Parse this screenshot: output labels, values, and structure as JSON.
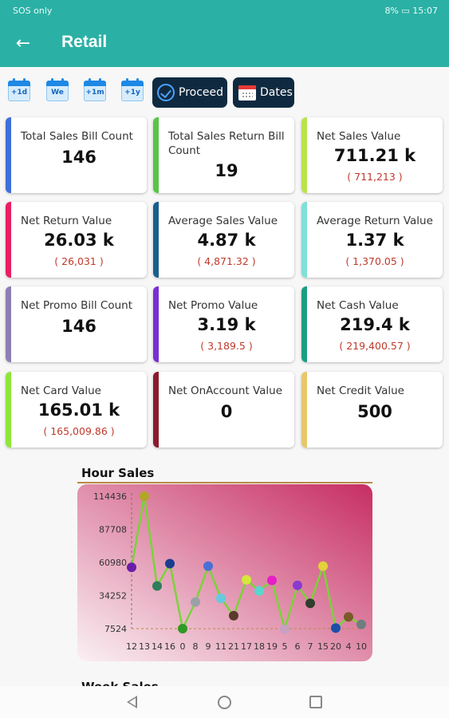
{
  "status": {
    "left": "SOS only",
    "battery": "8%",
    "time": "15:07"
  },
  "appbar": {
    "title": "Retail",
    "back_icon": "arrow-left-icon"
  },
  "toolbar": {
    "shortcuts": [
      "+1d",
      "We",
      "+1m",
      "+1y"
    ],
    "proceed": "Proceed",
    "dates": "Dates"
  },
  "cards": [
    {
      "label": "Total Sales Bill Count",
      "value": "146",
      "sub": "",
      "color": "#3f6fd8"
    },
    {
      "label": "Total Sales Return Bill Count",
      "value": "19",
      "sub": "",
      "color": "#57c548"
    },
    {
      "label": "Net Sales Value",
      "value": "711.21 k",
      "sub": "( 711,213 )",
      "color": "#b9e34a"
    },
    {
      "label": "Net Return Value",
      "value": "26.03 k",
      "sub": "( 26,031 )",
      "color": "#e91e63"
    },
    {
      "label": "Average Sales Value",
      "value": "4.87 k",
      "sub": "( 4,871.32 )",
      "color": "#1a5f8c"
    },
    {
      "label": "Average Return Value",
      "value": "1.37 k",
      "sub": "( 1,370.05 )",
      "color": "#7fe0d6"
    },
    {
      "label": "Net Promo Bill Count",
      "value": "146",
      "sub": "",
      "color": "#8d7fb3"
    },
    {
      "label": "Net Promo Value",
      "value": "3.19 k",
      "sub": "( 3,189.5 )",
      "color": "#7a2ed6"
    },
    {
      "label": "Net Cash Value",
      "value": "219.4 k",
      "sub": "( 219,400.57 )",
      "color": "#1a9e82"
    },
    {
      "label": "Net Card Value",
      "value": "165.01 k",
      "sub": "( 165,009.86 )",
      "color": "#8ee53a"
    },
    {
      "label": "Net OnAccount Value",
      "value": "0",
      "sub": "",
      "color": "#8b1a2c"
    },
    {
      "label": "Net Credit Value",
      "value": "500",
      "sub": "",
      "color": "#e8c66a"
    }
  ],
  "chart_data": {
    "type": "line",
    "title": "Hour Sales",
    "x": [
      "12",
      "13",
      "14",
      "16",
      "0",
      "8",
      "9",
      "11",
      "21",
      "17",
      "18",
      "19",
      "5",
      "6",
      "7",
      "15",
      "20",
      "4",
      "10"
    ],
    "values": [
      57000,
      114436,
      42000,
      60000,
      7524,
      29000,
      58000,
      32000,
      18000,
      47000,
      38000,
      46500,
      7000,
      42500,
      28000,
      58000,
      8000,
      17000,
      11000
    ],
    "point_colors": [
      "#6a1ea8",
      "#b1a626",
      "#2f7d5a",
      "#1c3e8f",
      "#2f9a24",
      "#9aa0a8",
      "#4a6fd4",
      "#67c8e0",
      "#5a3a2a",
      "#d4e83a",
      "#59d6ce",
      "#e81cc8",
      "#c7a0c2",
      "#8a3ad0",
      "#2f3e2f",
      "#e2d23a",
      "#1c4fa8",
      "#7a5a2a",
      "#6e7e7e"
    ],
    "yticks": [
      7524,
      34252,
      60980,
      87708,
      114436
    ],
    "ylim": [
      7524,
      114436
    ],
    "colors": {
      "line": "#7ad33a",
      "bg_light": "#faf0f4",
      "bg_dark": "#c72e63",
      "guide": "#b98a44"
    }
  },
  "week_title": "Week Sales",
  "nav": {
    "back": "triangle-back-icon",
    "home": "circle-home-icon",
    "recent": "square-recent-icon"
  }
}
